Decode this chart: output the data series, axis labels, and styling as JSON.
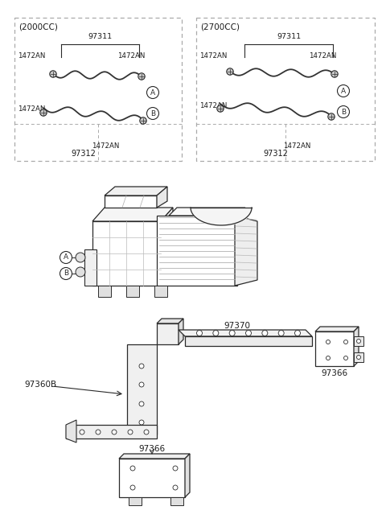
{
  "bg_color": "#ffffff",
  "line_color": "#2a2a2a",
  "label_color": "#1a1a1a",
  "dash_color": "#999999",
  "gray_fill": "#f0f0f0",
  "panel1_label": "(2000CC)",
  "panel2_label": "(2700CC)",
  "p97311": "97311",
  "p97312": "97312",
  "p1472AN": "1472AN",
  "p97370": "97370",
  "p97360B": "97360B",
  "p97366": "97366",
  "cA": "A",
  "cB": "B",
  "fig_w": 4.8,
  "fig_h": 6.55,
  "dpi": 100
}
